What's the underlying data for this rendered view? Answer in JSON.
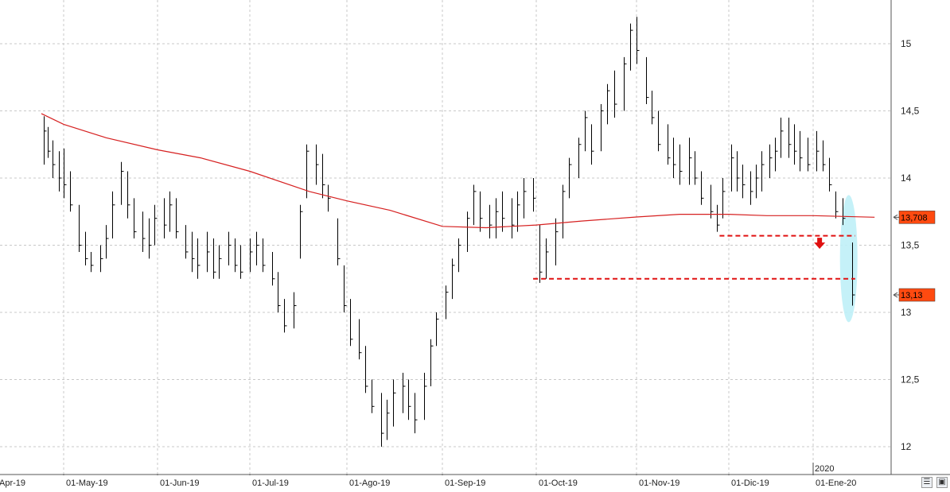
{
  "chart_data": {
    "type": "bar",
    "subtype": "ohlc",
    "title": "",
    "xlabel": "",
    "ylabel": "",
    "ylim": [
      11.95,
      15.65
    ],
    "y_ticks": [
      12,
      12.5,
      13,
      13.5,
      14,
      14.5,
      15
    ],
    "y_tick_labels": [
      "12",
      "12,5",
      "13",
      "13,5",
      "14",
      "14,5",
      "15"
    ],
    "x_tick_labels": [
      "Apr-19",
      "01-May-19",
      "01-Jun-19",
      "01-Jul-19",
      "01-Ago-19",
      "01-Sep-19",
      "01-Oct-19",
      "01-Nov-19",
      "01-Dic-19",
      "01-Ene-20"
    ],
    "x_year_label": "2020",
    "grid": true,
    "bar_color": "#000000",
    "series": [
      {
        "type": "line",
        "color": "#d62020",
        "points": [
          [
            "2019-04-21",
            14.48
          ],
          [
            "2019-05-01",
            14.4
          ],
          [
            "2019-05-15",
            14.3
          ],
          [
            "2019-06-01",
            14.21
          ],
          [
            "2019-06-15",
            14.15
          ],
          [
            "2019-07-01",
            14.05
          ],
          [
            "2019-07-20",
            13.9
          ],
          [
            "2019-08-01",
            13.83
          ],
          [
            "2019-08-15",
            13.76
          ],
          [
            "2019-09-01",
            13.64
          ],
          [
            "2019-09-15",
            13.63
          ],
          [
            "2019-10-01",
            13.65
          ],
          [
            "2019-10-15",
            13.68
          ],
          [
            "2019-11-01",
            13.71
          ],
          [
            "2019-11-15",
            13.73
          ],
          [
            "2019-12-01",
            13.73
          ],
          [
            "2019-12-15",
            13.72
          ],
          [
            "2020-01-01",
            13.72
          ],
          [
            "2020-01-20",
            13.708
          ]
        ]
      }
    ],
    "ohlc": [
      [
        "2019-04-22",
        14.46,
        14.1,
        14.35
      ],
      [
        "2019-04-24",
        14.38,
        14.15,
        14.2
      ],
      [
        "2019-04-26",
        14.28,
        14.0,
        14.1
      ],
      [
        "2019-04-29",
        14.2,
        13.9,
        14.0
      ],
      [
        "2019-05-01",
        14.22,
        13.85,
        13.95
      ],
      [
        "2019-05-03",
        14.05,
        13.75,
        13.8
      ],
      [
        "2019-05-06",
        13.8,
        13.45,
        13.5
      ],
      [
        "2019-05-08",
        13.6,
        13.35,
        13.4
      ],
      [
        "2019-05-10",
        13.45,
        13.3,
        13.35
      ],
      [
        "2019-05-13",
        13.5,
        13.3,
        13.4
      ],
      [
        "2019-05-15",
        13.65,
        13.4,
        13.55
      ],
      [
        "2019-05-17",
        13.9,
        13.55,
        13.8
      ],
      [
        "2019-05-20",
        14.12,
        13.8,
        14.05
      ],
      [
        "2019-05-22",
        14.05,
        13.7,
        13.8
      ],
      [
        "2019-05-24",
        13.85,
        13.55,
        13.6
      ],
      [
        "2019-05-27",
        13.75,
        13.45,
        13.55
      ],
      [
        "2019-05-29",
        13.7,
        13.4,
        13.5
      ],
      [
        "2019-05-31",
        13.8,
        13.5,
        13.7
      ],
      [
        "2019-06-03",
        13.85,
        13.55,
        13.65
      ],
      [
        "2019-06-05",
        13.9,
        13.6,
        13.8
      ],
      [
        "2019-06-07",
        13.85,
        13.55,
        13.6
      ],
      [
        "2019-06-10",
        13.65,
        13.4,
        13.45
      ],
      [
        "2019-06-12",
        13.6,
        13.3,
        13.4
      ],
      [
        "2019-06-14",
        13.55,
        13.25,
        13.35
      ],
      [
        "2019-06-17",
        13.6,
        13.3,
        13.45
      ],
      [
        "2019-06-19",
        13.55,
        13.25,
        13.3
      ],
      [
        "2019-06-21",
        13.5,
        13.25,
        13.4
      ],
      [
        "2019-06-24",
        13.6,
        13.35,
        13.5
      ],
      [
        "2019-06-26",
        13.55,
        13.3,
        13.35
      ],
      [
        "2019-06-28",
        13.5,
        13.25,
        13.3
      ],
      [
        "2019-07-01",
        13.55,
        13.3,
        13.45
      ],
      [
        "2019-07-03",
        13.6,
        13.35,
        13.5
      ],
      [
        "2019-07-05",
        13.55,
        13.3,
        13.35
      ],
      [
        "2019-07-08",
        13.45,
        13.2,
        13.25
      ],
      [
        "2019-07-10",
        13.3,
        13.0,
        13.05
      ],
      [
        "2019-07-12",
        13.1,
        12.85,
        12.9
      ],
      [
        "2019-07-15",
        13.15,
        12.88,
        13.05
      ],
      [
        "2019-07-17",
        13.8,
        13.4,
        13.75
      ],
      [
        "2019-07-19",
        14.25,
        13.85,
        14.2
      ],
      [
        "2019-07-22",
        14.25,
        13.95,
        14.1
      ],
      [
        "2019-07-24",
        14.18,
        13.85,
        13.95
      ],
      [
        "2019-07-26",
        13.95,
        13.75,
        13.85
      ],
      [
        "2019-07-29",
        13.7,
        13.35,
        13.4
      ],
      [
        "2019-07-31",
        13.35,
        13.0,
        13.05
      ],
      [
        "2019-08-02",
        13.1,
        12.75,
        12.8
      ],
      [
        "2019-08-05",
        12.95,
        12.65,
        12.7
      ],
      [
        "2019-08-07",
        12.75,
        12.4,
        12.45
      ],
      [
        "2019-08-09",
        12.5,
        12.25,
        12.3
      ],
      [
        "2019-08-12",
        12.4,
        12.0,
        12.1
      ],
      [
        "2019-08-14",
        12.35,
        12.05,
        12.25
      ],
      [
        "2019-08-16",
        12.5,
        12.15,
        12.4
      ],
      [
        "2019-08-19",
        12.55,
        12.25,
        12.45
      ],
      [
        "2019-08-21",
        12.5,
        12.2,
        12.3
      ],
      [
        "2019-08-23",
        12.4,
        12.1,
        12.2
      ],
      [
        "2019-08-26",
        12.55,
        12.2,
        12.45
      ],
      [
        "2019-08-28",
        12.8,
        12.45,
        12.75
      ],
      [
        "2019-08-30",
        13.0,
        12.75,
        12.95
      ],
      [
        "2019-09-02",
        13.2,
        12.95,
        13.15
      ],
      [
        "2019-09-04",
        13.4,
        13.1,
        13.35
      ],
      [
        "2019-09-06",
        13.55,
        13.3,
        13.5
      ],
      [
        "2019-09-09",
        13.75,
        13.45,
        13.7
      ],
      [
        "2019-09-11",
        13.95,
        13.65,
        13.9
      ],
      [
        "2019-09-13",
        13.9,
        13.6,
        13.7
      ],
      [
        "2019-09-16",
        13.8,
        13.55,
        13.65
      ],
      [
        "2019-09-18",
        13.85,
        13.55,
        13.75
      ],
      [
        "2019-09-20",
        13.9,
        13.6,
        13.7
      ],
      [
        "2019-09-23",
        13.85,
        13.55,
        13.65
      ],
      [
        "2019-09-25",
        13.9,
        13.6,
        13.8
      ],
      [
        "2019-09-27",
        14.0,
        13.7,
        13.9
      ],
      [
        "2019-09-30",
        14.0,
        13.75,
        13.85
      ],
      [
        "2019-10-02",
        13.65,
        13.22,
        13.3
      ],
      [
        "2019-10-04",
        13.55,
        13.25,
        13.45
      ],
      [
        "2019-10-07",
        13.7,
        13.35,
        13.6
      ],
      [
        "2019-10-09",
        13.95,
        13.55,
        13.9
      ],
      [
        "2019-10-11",
        14.15,
        13.85,
        14.1
      ],
      [
        "2019-10-14",
        14.3,
        14.0,
        14.25
      ],
      [
        "2019-10-16",
        14.5,
        14.2,
        14.45
      ],
      [
        "2019-10-18",
        14.4,
        14.1,
        14.2
      ],
      [
        "2019-10-21",
        14.55,
        14.2,
        14.5
      ],
      [
        "2019-10-23",
        14.7,
        14.4,
        14.65
      ],
      [
        "2019-10-25",
        14.8,
        14.45,
        14.55
      ],
      [
        "2019-10-28",
        14.9,
        14.5,
        14.85
      ],
      [
        "2019-10-30",
        15.15,
        14.8,
        15.1
      ],
      [
        "2019-11-01",
        15.2,
        14.85,
        14.95
      ],
      [
        "2019-11-04",
        14.9,
        14.55,
        14.6
      ],
      [
        "2019-11-06",
        14.65,
        14.4,
        14.45
      ],
      [
        "2019-11-08",
        14.5,
        14.2,
        14.25
      ],
      [
        "2019-11-11",
        14.4,
        14.1,
        14.15
      ],
      [
        "2019-11-13",
        14.3,
        14.0,
        14.1
      ],
      [
        "2019-11-15",
        14.25,
        13.95,
        14.05
      ],
      [
        "2019-11-18",
        14.3,
        13.95,
        14.15
      ],
      [
        "2019-11-20",
        14.2,
        13.95,
        14.0
      ],
      [
        "2019-11-22",
        14.05,
        13.8,
        13.85
      ],
      [
        "2019-11-25",
        13.95,
        13.7,
        13.75
      ],
      [
        "2019-11-27",
        13.8,
        13.6,
        13.65
      ],
      [
        "2019-11-29",
        14.0,
        13.7,
        13.9
      ],
      [
        "2019-12-02",
        14.25,
        13.9,
        14.15
      ],
      [
        "2019-12-04",
        14.2,
        13.9,
        14.0
      ],
      [
        "2019-12-06",
        14.1,
        13.85,
        13.95
      ],
      [
        "2019-12-09",
        14.05,
        13.8,
        13.9
      ],
      [
        "2019-12-11",
        14.1,
        13.85,
        14.0
      ],
      [
        "2019-12-13",
        14.2,
        13.9,
        14.1
      ],
      [
        "2019-12-16",
        14.25,
        14.0,
        14.15
      ],
      [
        "2019-12-18",
        14.3,
        14.05,
        14.2
      ],
      [
        "2019-12-20",
        14.45,
        14.15,
        14.35
      ],
      [
        "2019-12-23",
        14.45,
        14.15,
        14.25
      ],
      [
        "2019-12-25",
        14.4,
        14.1,
        14.2
      ],
      [
        "2019-12-27",
        14.35,
        14.05,
        14.15
      ],
      [
        "2019-12-30",
        14.3,
        14.05,
        14.1
      ],
      [
        "2020-01-02",
        14.35,
        14.05,
        14.2
      ],
      [
        "2020-01-04",
        14.28,
        14.05,
        14.1
      ],
      [
        "2020-01-06",
        14.15,
        13.9,
        13.95
      ],
      [
        "2020-01-08",
        13.9,
        13.7,
        13.75
      ],
      [
        "2020-01-10",
        13.85,
        13.65,
        13.7
      ],
      [
        "2020-01-13",
        13.52,
        13.05,
        13.13
      ]
    ],
    "annotations": [
      {
        "type": "hline",
        "style": "dashed",
        "color": "#e01010",
        "y": 13.25,
        "x_from": "2019-09-30",
        "x_to": "2020-01-14"
      },
      {
        "type": "hline",
        "style": "dashed",
        "color": "#e01010",
        "y": 13.57,
        "x_from": "2019-11-28",
        "x_to": "2020-01-14"
      },
      {
        "type": "arrow",
        "direction": "down",
        "color": "#e01010",
        "x": "2020-01-03",
        "y": 13.52
      },
      {
        "type": "ellipse",
        "color": "#bff0f7",
        "x": "2020-01-12",
        "y": 13.4
      }
    ],
    "price_labels": [
      {
        "label": "13,708",
        "value": 13.708,
        "color": "#ff4a10"
      },
      {
        "label": "13,13",
        "value": 13.13,
        "color": "#ff4a10"
      }
    ]
  },
  "corner_icons": [
    "toolbar-icon",
    "save-disk-icon"
  ]
}
